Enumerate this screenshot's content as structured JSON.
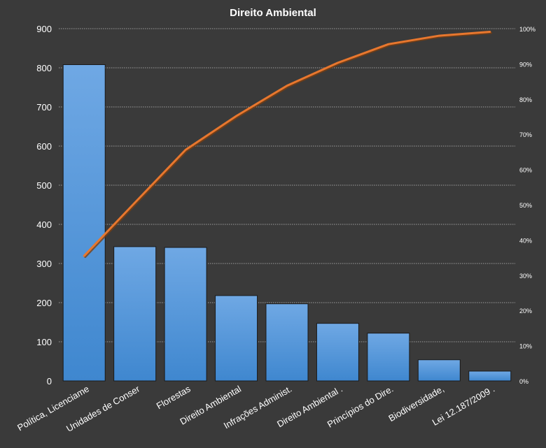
{
  "chart_data": {
    "type": "bar",
    "title": "Direito  Ambiental",
    "categories": [
      "Política, Licenciame",
      "Unidades de Conser",
      "Florestas",
      "Direito Ambiental",
      "Infrações Administ.",
      "Direito Ambiental   .",
      "Princípios do Dire.",
      "Biodiversidade,",
      "Lei 12.187/2009 ."
    ],
    "series": [
      {
        "type": "bar",
        "values": [
          808,
          343,
          341,
          218,
          197,
          147,
          122,
          54,
          25
        ]
      },
      {
        "type": "line",
        "axis": "right",
        "values": [
          35.5,
          50.6,
          65.6,
          75.2,
          83.8,
          90.3,
          95.6,
          98.0,
          99.1
        ]
      }
    ],
    "ylim": [
      0,
      900
    ],
    "yticks": [
      "0",
      "100",
      "200",
      "300",
      "400",
      "500",
      "600",
      "700",
      "800",
      "900"
    ],
    "y2lim": [
      0,
      100
    ],
    "y2ticks": [
      "0%",
      "10%",
      "20%",
      "30%",
      "40%",
      "50%",
      "60%",
      "70%",
      "80%",
      "90%",
      "100%"
    ],
    "grid": true,
    "legend": "none",
    "colors": {
      "background": "#3a3a3a",
      "bar_top": "#6fa8e4",
      "bar_bottom": "#3f87cf",
      "line": "#e8772e",
      "line_shadow": "#7a3f12"
    }
  }
}
